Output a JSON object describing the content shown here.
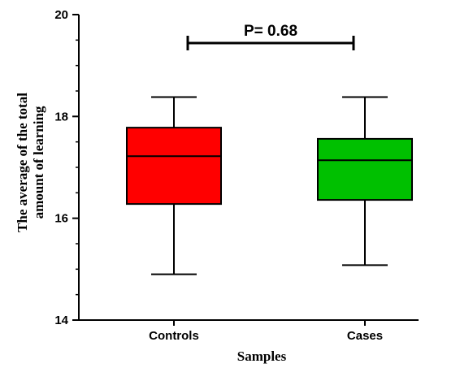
{
  "chart_data": {
    "type": "box",
    "ylabel_lines": [
      "The average of the total",
      "amount of learning"
    ],
    "xlabel": "Samples",
    "ylim": [
      14,
      20
    ],
    "yticks": [
      14,
      16,
      18,
      20
    ],
    "categories": [
      "Controls",
      "Cases"
    ],
    "boxes": [
      {
        "name": "Controls",
        "min": 14.9,
        "q1": 16.28,
        "median": 17.22,
        "q3": 17.78,
        "max": 18.38,
        "color": "#ff0000"
      },
      {
        "name": "Cases",
        "min": 15.08,
        "q1": 16.36,
        "median": 17.14,
        "q3": 17.56,
        "max": 18.38,
        "color": "#00c000"
      }
    ],
    "annotation": {
      "text": "P= 0.68"
    },
    "grid": false,
    "legend": "none"
  }
}
